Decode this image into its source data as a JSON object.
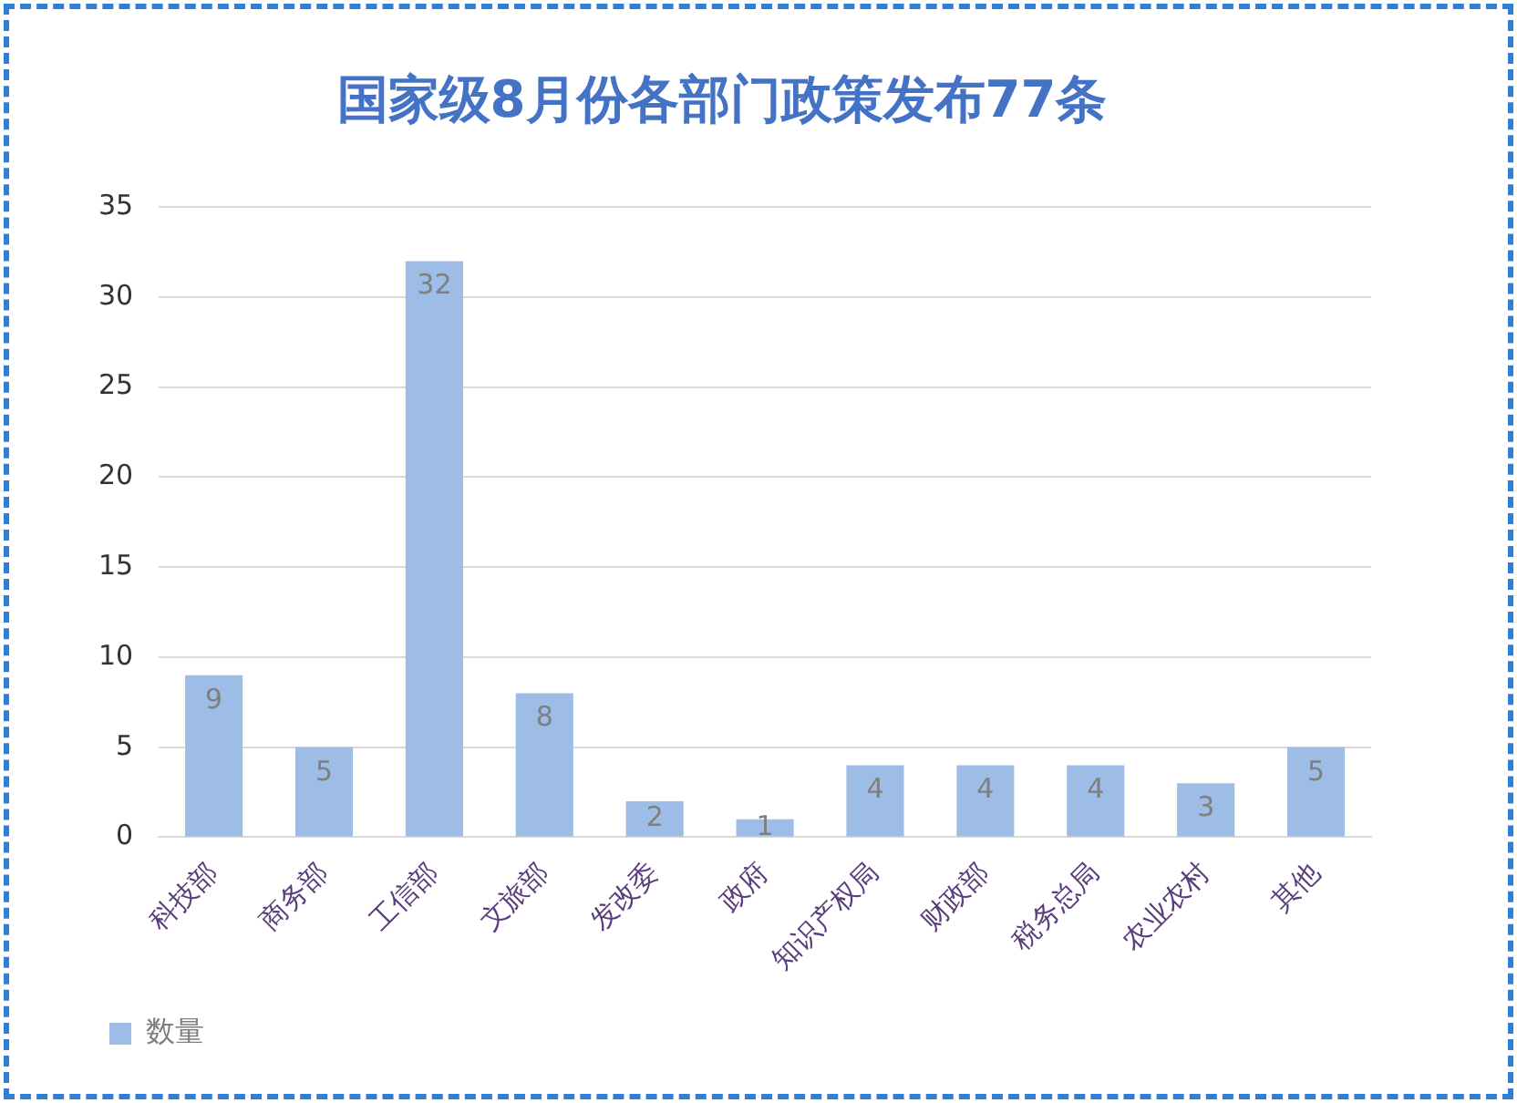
{
  "chart_data": {
    "type": "bar",
    "title": "国家级8月份各部门政策发布77条",
    "categories": [
      "科技部",
      "商务部",
      "工信部",
      "文旅部",
      "发改委",
      "政府",
      "知识产权局",
      "财政部",
      "税务总局",
      "农业农村",
      "其他"
    ],
    "series": [
      {
        "name": "数量",
        "color": "#9dbde6",
        "values": [
          9,
          5,
          32,
          8,
          2,
          1,
          4,
          4,
          4,
          3,
          5
        ]
      }
    ],
    "ylim": [
      0,
      35
    ],
    "yticks": [
      0,
      5,
      10,
      15,
      20,
      25,
      30,
      35
    ],
    "grid": "y",
    "legend": "bottom left",
    "data_labels": true
  }
}
